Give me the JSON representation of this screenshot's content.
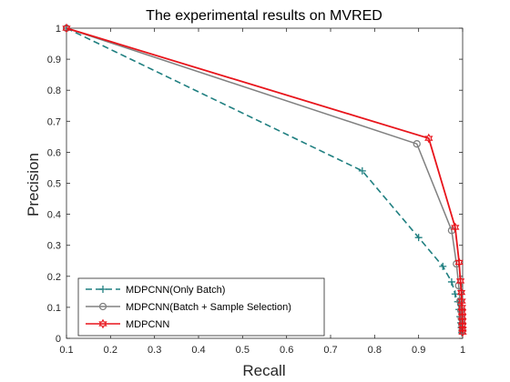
{
  "chart_data": {
    "type": "line",
    "title": "The experimental results on MVRED",
    "xlabel": "Recall",
    "ylabel": "Precision",
    "xlim": [
      0.1,
      1
    ],
    "ylim": [
      0,
      1
    ],
    "xticks": [
      "0.1",
      "0.2",
      "0.3",
      "0.4",
      "0.5",
      "0.6",
      "0.7",
      "0.8",
      "0.9",
      "1"
    ],
    "yticks": [
      "0",
      "0.1",
      "0.2",
      "0.3",
      "0.4",
      "0.5",
      "0.6",
      "0.7",
      "0.8",
      "0.9",
      "1"
    ],
    "grid": false,
    "legend_position": "bottom-left",
    "series": [
      {
        "name": "MDPCNN(Only Batch)",
        "color": "#1f7f80",
        "line_style": "dashed",
        "marker": "plus",
        "x": [
          0.1,
          0.772,
          0.9,
          0.955,
          0.975,
          0.983,
          0.989,
          0.992,
          0.994,
          0.996,
          0.997,
          0.998
        ],
        "y": [
          1.0,
          0.54,
          0.325,
          0.232,
          0.182,
          0.143,
          0.118,
          0.093,
          0.07,
          0.05,
          0.035,
          0.018
        ]
      },
      {
        "name": "MDPCNN(Batch + Sample Selection)",
        "color": "#808080",
        "line_style": "solid",
        "marker": "circle",
        "x": [
          0.1,
          0.896,
          0.975,
          0.986,
          0.991,
          0.994,
          0.996,
          0.997,
          0.998,
          0.999
        ],
        "y": [
          1.0,
          0.627,
          0.348,
          0.24,
          0.17,
          0.12,
          0.09,
          0.065,
          0.045,
          0.025
        ]
      },
      {
        "name": "MDPCNN",
        "color": "#e8141b",
        "line_style": "solid",
        "marker": "hexagram",
        "x": [
          0.1,
          0.923,
          0.983,
          0.992,
          0.995,
          0.997,
          0.998,
          0.9985,
          0.999,
          0.9993,
          0.9995,
          0.9997,
          0.9998,
          1.0
        ],
        "y": [
          1.0,
          0.645,
          0.358,
          0.245,
          0.185,
          0.148,
          0.12,
          0.1,
          0.085,
          0.07,
          0.055,
          0.04,
          0.03,
          0.02
        ]
      }
    ]
  }
}
